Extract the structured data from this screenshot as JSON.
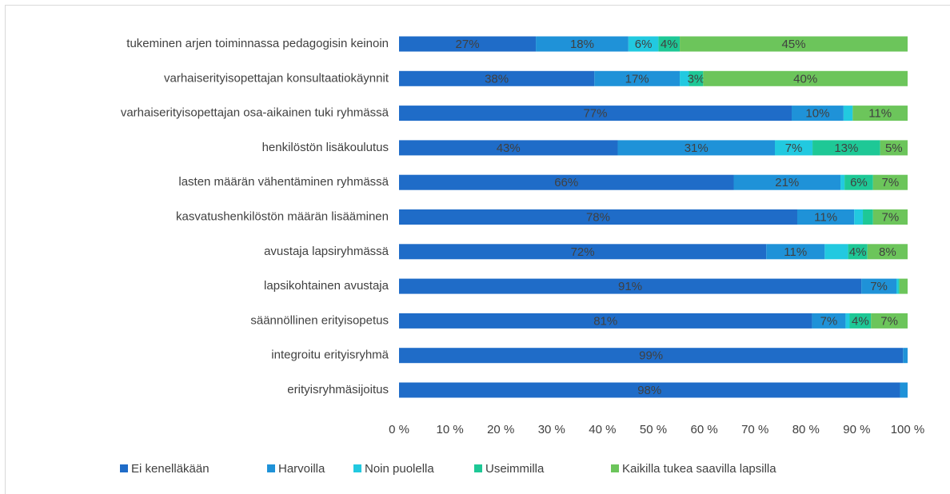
{
  "chart_data": {
    "type": "stacked_barh",
    "categories": [
      "tukeminen arjen toiminnassa pedagogisin keinoin",
      "varhaiserityisopettajan konsultaatiokäynnit",
      "varhaiserityisopettajan osa-aikainen tuki ryhmässä",
      "henkilöstön lisäkoulutus",
      "lasten määrän vähentäminen ryhmässä",
      "kasvatushenkilöstön määrän lisääminen",
      "avustaja lapsiryhmässä",
      "lapsikohtainen avustaja",
      "säännöllinen erityisopetus",
      "integroitu erityisryhmä",
      "erityisryhmäsijoitus"
    ],
    "series": [
      {
        "name": "Ei kenelläkään",
        "color": "#1f6cc8",
        "values": [
          26.9,
          38.4,
          77.2,
          43.0,
          65.8,
          78.3,
          72.2,
          90.9,
          81.2,
          99.1,
          98.5
        ],
        "value_labels": [
          "27%",
          "38%",
          "77%",
          "43%",
          "66%",
          "78%",
          "72%",
          "91%",
          "81%",
          "99%",
          "98%"
        ]
      },
      {
        "name": "Harvoilla",
        "color": "#1f92d8",
        "values": [
          18.2,
          16.8,
          10.2,
          30.9,
          21.0,
          11.2,
          11.5,
          6.9,
          6.6,
          0.9,
          1.5
        ],
        "value_labels": [
          "18%",
          "17%",
          "10%",
          "31%",
          "21%",
          "11%",
          "11%",
          "7%",
          "7%",
          null,
          null
        ]
      },
      {
        "name": "Noin puolella",
        "color": "#22c9e0",
        "values": [
          5.9,
          1.8,
          1.8,
          7.4,
          0.8,
          1.7,
          4.6,
          0.4,
          0.8,
          0,
          0
        ],
        "value_labels": [
          "6%",
          null,
          null,
          "7%",
          null,
          null,
          null,
          null,
          null,
          null,
          null
        ]
      },
      {
        "name": "Useimmilla",
        "color": "#1ec896",
        "values": [
          4.2,
          2.8,
          0,
          13.3,
          5.6,
          2.0,
          3.8,
          0.2,
          4.2,
          0,
          0
        ],
        "value_labels": [
          "4%",
          "3%",
          null,
          "13%",
          "6%",
          null,
          "4%",
          null,
          "4%",
          null,
          null
        ]
      },
      {
        "name": "Kaikilla tukea saavilla lapsilla",
        "color": "#6cc55b",
        "values": [
          44.8,
          40.2,
          10.8,
          5.4,
          6.8,
          6.8,
          7.9,
          1.6,
          7.2,
          0,
          0
        ],
        "value_labels": [
          "45%",
          "40%",
          "11%",
          "5%",
          "7%",
          "7%",
          "8%",
          null,
          "7%",
          null,
          null
        ]
      }
    ],
    "xlim": [
      0,
      100
    ],
    "xticks": [
      {
        "value": 0,
        "label": "0 %"
      },
      {
        "value": 10,
        "label": "10 %"
      },
      {
        "value": 20,
        "label": "20 %"
      },
      {
        "value": 30,
        "label": "30 %"
      },
      {
        "value": 40,
        "label": "40 %"
      },
      {
        "value": 50,
        "label": "50 %"
      },
      {
        "value": 60,
        "label": "60 %"
      },
      {
        "value": 70,
        "label": "70 %"
      },
      {
        "value": 80,
        "label": "80 %"
      },
      {
        "value": 90,
        "label": "90 %"
      },
      {
        "value": 100,
        "label": "100 %"
      }
    ],
    "grid": false,
    "legend": "bottom"
  }
}
